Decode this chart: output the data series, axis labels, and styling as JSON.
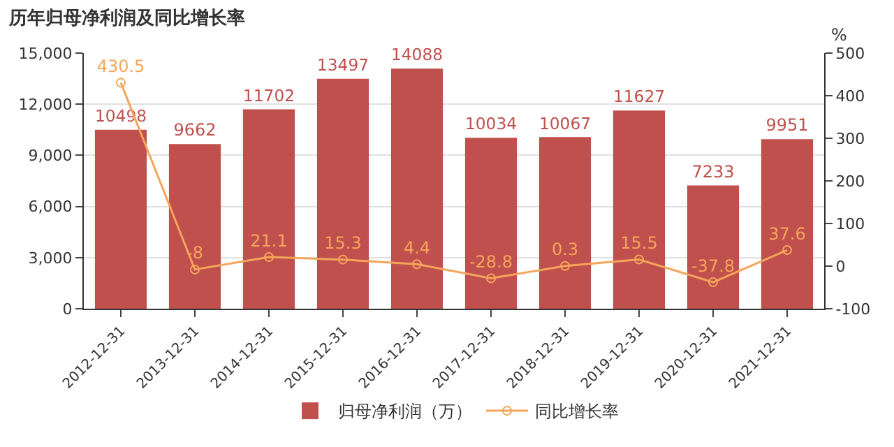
{
  "chart_data": {
    "type": "bar",
    "title": "历年归母净利润及同比增长率",
    "y2label": "%",
    "categories": [
      "2012-12-31",
      "2013-12-31",
      "2014-12-31",
      "2015-12-31",
      "2016-12-31",
      "2017-12-31",
      "2018-12-31",
      "2019-12-31",
      "2020-12-31",
      "2021-12-31"
    ],
    "series": [
      {
        "name": "归母净利润（万）",
        "color": "#c0504d",
        "values": [
          10498,
          9662,
          11702,
          13497,
          14088,
          10034,
          10067,
          11627,
          7233,
          9951
        ]
      },
      {
        "name": "同比增长率",
        "type": "line",
        "axis": "y2",
        "color": "#f5a55a",
        "marker": "circle",
        "values": [
          430.5,
          -8,
          21.1,
          15.3,
          4.4,
          -28.8,
          0.3,
          15.5,
          -37.8,
          37.6
        ]
      }
    ],
    "ylim": [
      0,
      15000
    ],
    "yticks": [
      0,
      {
        "value": 3000,
        "label": "3,000"
      },
      {
        "value": 6000,
        "label": "6,000"
      },
      {
        "value": 9000,
        "label": "9,000"
      },
      {
        "value": 12000,
        "label": "12,000"
      },
      {
        "value": 15000,
        "label": "15,000"
      }
    ],
    "y2lim": [
      -100,
      500
    ],
    "y2ticks": [
      -100,
      0,
      100,
      200,
      300,
      400,
      500
    ],
    "grid": "y",
    "legend": "bottom",
    "data_labels": true
  }
}
